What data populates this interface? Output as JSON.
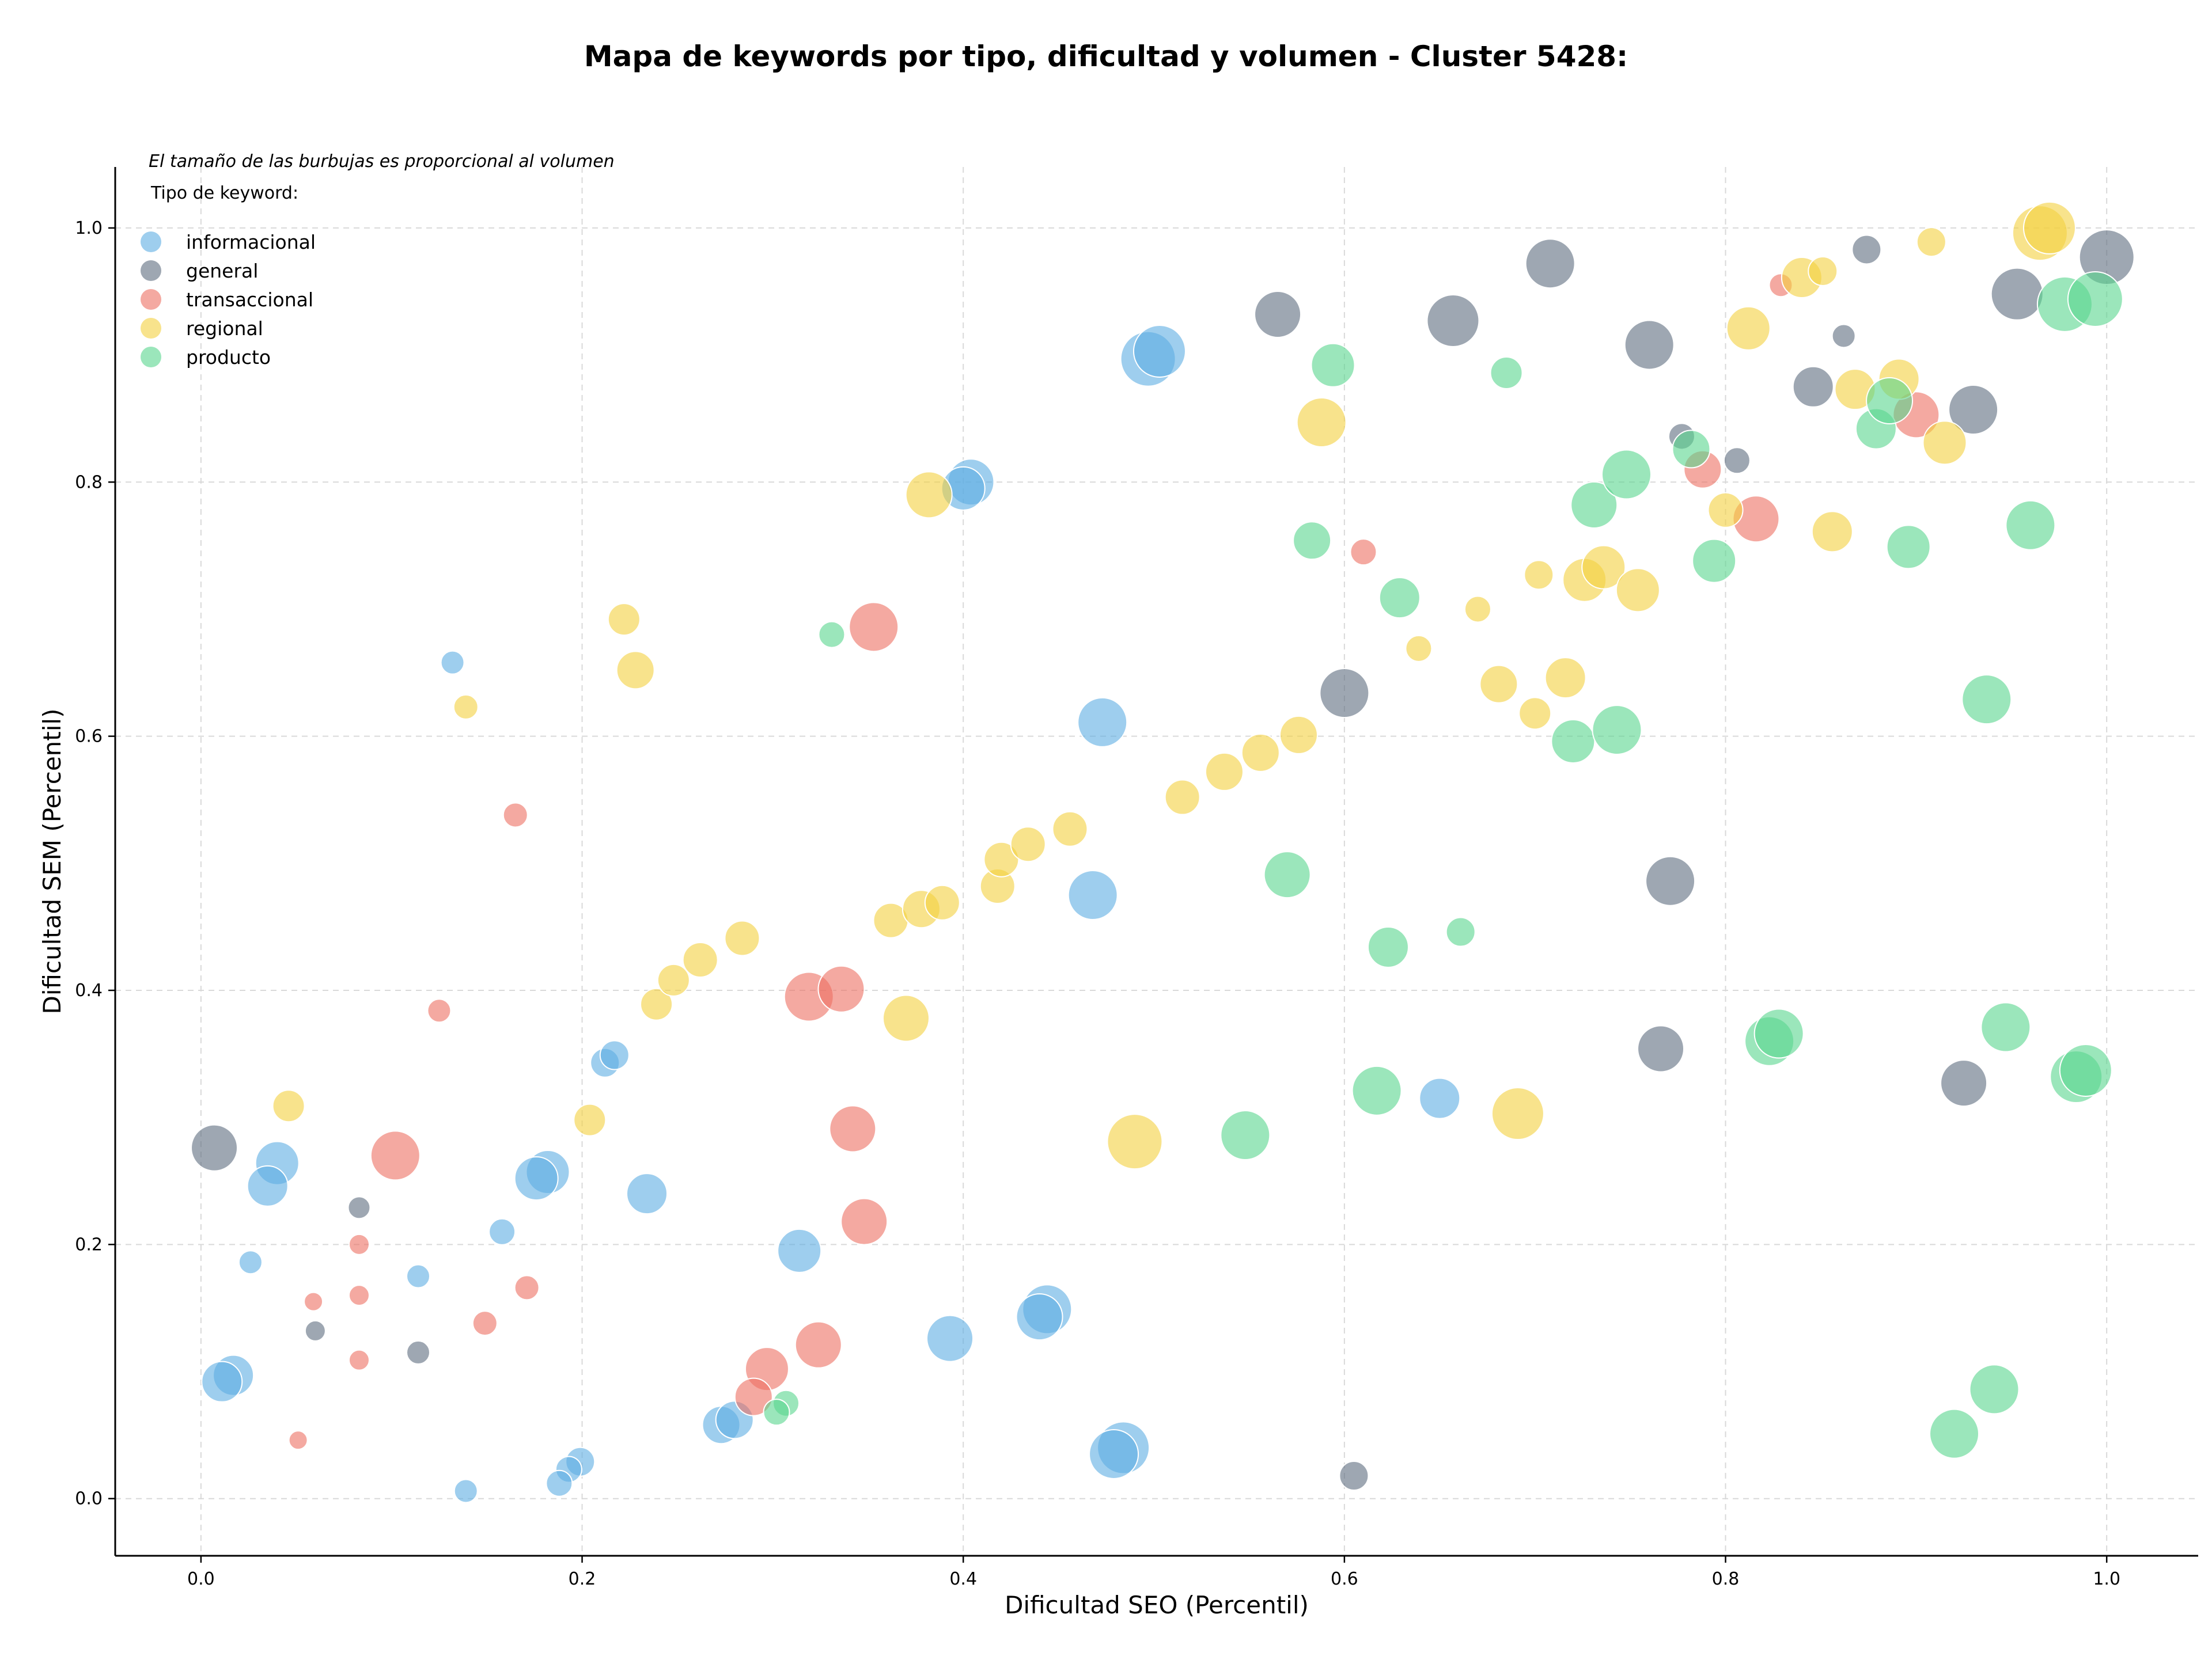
{
  "chart_data": {
    "type": "scatter",
    "title": "Mapa de keywords por tipo, dificultad y volumen - Cluster 5428:",
    "xlabel": "Dificultad SEO (Percentil)",
    "ylabel": "Dificultad SEM (Percentil)",
    "xlim": [
      -0.045,
      1.048
    ],
    "ylim": [
      -0.045,
      1.048
    ],
    "xticks": [
      "0.0",
      "0.2",
      "0.4",
      "0.6",
      "0.8",
      "1.0"
    ],
    "yticks": [
      "0.0",
      "0.2",
      "0.4",
      "0.6",
      "0.8",
      "1.0"
    ],
    "grid": true,
    "legend": {
      "placement": "top-left",
      "note": "El tamaño de las burbujas es proporcional al volumen",
      "title": "Tipo de keyword:"
    },
    "series": [
      {
        "name": "informacional",
        "color": "#5dade2",
        "points": [
          [
            0.497,
            0.897,
            95
          ],
          [
            0.503,
            0.903,
            90
          ],
          [
            0.404,
            0.8,
            80
          ],
          [
            0.4,
            0.795,
            75
          ],
          [
            0.473,
            0.611,
            85
          ],
          [
            0.132,
            0.658,
            40
          ],
          [
            0.468,
            0.475,
            85
          ],
          [
            0.212,
            0.343,
            50
          ],
          [
            0.217,
            0.349,
            50
          ],
          [
            0.04,
            0.264,
            75
          ],
          [
            0.035,
            0.246,
            70
          ],
          [
            0.182,
            0.257,
            75
          ],
          [
            0.176,
            0.252,
            75
          ],
          [
            0.234,
            0.24,
            70
          ],
          [
            0.158,
            0.21,
            45
          ],
          [
            0.026,
            0.186,
            40
          ],
          [
            0.114,
            0.175,
            40
          ],
          [
            0.314,
            0.195,
            75
          ],
          [
            0.393,
            0.126,
            80
          ],
          [
            0.444,
            0.149,
            85
          ],
          [
            0.44,
            0.143,
            80
          ],
          [
            0.65,
            0.315,
            70
          ],
          [
            0.017,
            0.097,
            70
          ],
          [
            0.011,
            0.092,
            70
          ],
          [
            0.273,
            0.058,
            65
          ],
          [
            0.28,
            0.062,
            65
          ],
          [
            0.484,
            0.04,
            90
          ],
          [
            0.479,
            0.035,
            85
          ],
          [
            0.199,
            0.029,
            50
          ],
          [
            0.193,
            0.023,
            45
          ],
          [
            0.188,
            0.012,
            45
          ],
          [
            0.139,
            0.006,
            40
          ]
        ]
      },
      {
        "name": "general",
        "color": "#5d6d7e",
        "points": [
          [
            0.007,
            0.276,
            80
          ],
          [
            0.083,
            0.229,
            38
          ],
          [
            0.06,
            0.132,
            35
          ],
          [
            0.114,
            0.115,
            40
          ],
          [
            0.565,
            0.932,
            80
          ],
          [
            0.657,
            0.927,
            90
          ],
          [
            0.708,
            0.972,
            85
          ],
          [
            0.76,
            0.908,
            85
          ],
          [
            0.874,
            0.983,
            50
          ],
          [
            0.862,
            0.915,
            40
          ],
          [
            0.846,
            0.875,
            70
          ],
          [
            0.953,
            0.948,
            90
          ],
          [
            1.0,
            0.977,
            95
          ],
          [
            0.93,
            0.857,
            85
          ],
          [
            0.777,
            0.836,
            45
          ],
          [
            0.806,
            0.817,
            45
          ],
          [
            0.6,
            0.634,
            85
          ],
          [
            0.771,
            0.486,
            85
          ],
          [
            0.766,
            0.354,
            80
          ],
          [
            0.925,
            0.327,
            80
          ],
          [
            0.605,
            0.018,
            50
          ]
        ]
      },
      {
        "name": "transaccional",
        "color": "#ec7063",
        "points": [
          [
            0.165,
            0.538,
            42
          ],
          [
            0.125,
            0.384,
            40
          ],
          [
            0.102,
            0.27,
            85
          ],
          [
            0.083,
            0.2,
            35
          ],
          [
            0.059,
            0.155,
            32
          ],
          [
            0.083,
            0.16,
            35
          ],
          [
            0.171,
            0.166,
            42
          ],
          [
            0.149,
            0.138,
            42
          ],
          [
            0.083,
            0.109,
            35
          ],
          [
            0.051,
            0.046,
            32
          ],
          [
            0.353,
            0.686,
            85
          ],
          [
            0.319,
            0.395,
            85
          ],
          [
            0.336,
            0.401,
            80
          ],
          [
            0.342,
            0.291,
            80
          ],
          [
            0.348,
            0.218,
            80
          ],
          [
            0.324,
            0.121,
            80
          ],
          [
            0.297,
            0.102,
            75
          ],
          [
            0.29,
            0.08,
            65
          ],
          [
            0.61,
            0.745,
            45
          ],
          [
            0.788,
            0.81,
            65
          ],
          [
            0.816,
            0.771,
            80
          ],
          [
            0.9,
            0.853,
            80
          ],
          [
            0.829,
            0.955,
            40
          ]
        ]
      },
      {
        "name": "regional",
        "color": "#f4d03f",
        "points": [
          [
            0.139,
            0.623,
            42
          ],
          [
            0.222,
            0.692,
            55
          ],
          [
            0.228,
            0.652,
            65
          ],
          [
            0.046,
            0.309,
            55
          ],
          [
            0.204,
            0.298,
            55
          ],
          [
            0.239,
            0.389,
            55
          ],
          [
            0.248,
            0.408,
            55
          ],
          [
            0.262,
            0.424,
            60
          ],
          [
            0.284,
            0.441,
            60
          ],
          [
            0.362,
            0.455,
            60
          ],
          [
            0.378,
            0.464,
            65
          ],
          [
            0.389,
            0.469,
            60
          ],
          [
            0.37,
            0.378,
            80
          ],
          [
            0.418,
            0.482,
            60
          ],
          [
            0.42,
            0.503,
            60
          ],
          [
            0.434,
            0.515,
            60
          ],
          [
            0.456,
            0.527,
            60
          ],
          [
            0.515,
            0.552,
            60
          ],
          [
            0.537,
            0.572,
            65
          ],
          [
            0.556,
            0.587,
            65
          ],
          [
            0.576,
            0.601,
            65
          ],
          [
            0.382,
            0.79,
            80
          ],
          [
            0.588,
            0.847,
            85
          ],
          [
            0.49,
            0.281,
            95
          ],
          [
            0.691,
            0.303,
            90
          ],
          [
            0.639,
            0.669,
            45
          ],
          [
            0.67,
            0.7,
            45
          ],
          [
            0.681,
            0.641,
            65
          ],
          [
            0.7,
            0.618,
            55
          ],
          [
            0.702,
            0.727,
            50
          ],
          [
            0.716,
            0.646,
            70
          ],
          [
            0.726,
            0.723,
            75
          ],
          [
            0.736,
            0.733,
            75
          ],
          [
            0.754,
            0.715,
            75
          ],
          [
            0.8,
            0.778,
            60
          ],
          [
            0.812,
            0.921,
            75
          ],
          [
            0.84,
            0.961,
            70
          ],
          [
            0.851,
            0.966,
            50
          ],
          [
            0.856,
            0.761,
            70
          ],
          [
            0.868,
            0.873,
            70
          ],
          [
            0.891,
            0.881,
            70
          ],
          [
            0.908,
            0.989,
            50
          ],
          [
            0.915,
            0.831,
            75
          ],
          [
            0.965,
            0.996,
            95
          ],
          [
            0.97,
            1.0,
            90
          ]
        ]
      },
      {
        "name": "producto",
        "color": "#58d68d",
        "points": [
          [
            0.331,
            0.68,
            45
          ],
          [
            0.594,
            0.892,
            75
          ],
          [
            0.685,
            0.886,
            55
          ],
          [
            0.583,
            0.754,
            65
          ],
          [
            0.629,
            0.709,
            70
          ],
          [
            0.57,
            0.491,
            80
          ],
          [
            0.623,
            0.434,
            70
          ],
          [
            0.661,
            0.446,
            50
          ],
          [
            0.617,
            0.321,
            85
          ],
          [
            0.548,
            0.286,
            85
          ],
          [
            0.307,
            0.075,
            45
          ],
          [
            0.302,
            0.068,
            45
          ],
          [
            0.731,
            0.782,
            80
          ],
          [
            0.748,
            0.806,
            85
          ],
          [
            0.782,
            0.826,
            65
          ],
          [
            0.794,
            0.738,
            75
          ],
          [
            0.72,
            0.596,
            75
          ],
          [
            0.743,
            0.605,
            85
          ],
          [
            0.879,
            0.842,
            70
          ],
          [
            0.886,
            0.864,
            80
          ],
          [
            0.896,
            0.749,
            75
          ],
          [
            0.937,
            0.629,
            85
          ],
          [
            0.96,
            0.766,
            85
          ],
          [
            0.978,
            0.94,
            95
          ],
          [
            0.994,
            0.944,
            95
          ],
          [
            0.823,
            0.36,
            85
          ],
          [
            0.828,
            0.366,
            85
          ],
          [
            0.947,
            0.371,
            85
          ],
          [
            0.984,
            0.332,
            90
          ],
          [
            0.989,
            0.337,
            90
          ],
          [
            0.941,
            0.086,
            85
          ],
          [
            0.92,
            0.051,
            85
          ]
        ]
      }
    ]
  }
}
